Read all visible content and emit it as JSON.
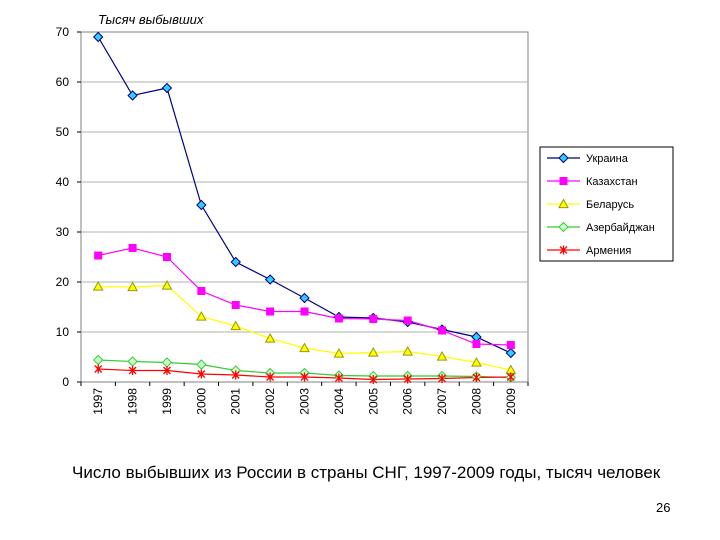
{
  "chart_data": {
    "type": "line",
    "ylabel": "Тысяч выбывших",
    "xlabel": "",
    "ylim": [
      0,
      70
    ],
    "yticks": [
      0,
      10,
      20,
      30,
      40,
      50,
      60,
      70
    ],
    "grid": true,
    "legend_position": "right",
    "x": [
      "1997",
      "1998",
      "1999",
      "2000",
      "2001",
      "2002",
      "2003",
      "2004",
      "2005",
      "2006",
      "2007",
      "2008",
      "2009"
    ],
    "series": [
      {
        "name": "Украина",
        "color": "#000080",
        "marker": "diamond",
        "marker_color": "#33CCFF",
        "values": [
          69,
          57.3,
          58.8,
          35.4,
          24.0,
          20.5,
          16.8,
          13.0,
          12.8,
          12.0,
          10.5,
          9.0,
          5.8
        ]
      },
      {
        "name": "Казахстан",
        "color": "#FF00FF",
        "marker": "square",
        "marker_color": "#FF00FF",
        "values": [
          25.3,
          26.8,
          25.0,
          18.2,
          15.4,
          14.1,
          14.1,
          12.7,
          12.6,
          12.3,
          10.3,
          7.6,
          7.4
        ]
      },
      {
        "name": "Беларусь",
        "color": "#FFFF00",
        "marker": "triangle",
        "marker_color": "#FFFF00",
        "values": [
          19.1,
          19.0,
          19.3,
          13.1,
          11.2,
          8.7,
          6.8,
          5.7,
          5.9,
          6.1,
          5.1,
          3.9,
          2.4
        ]
      },
      {
        "name": "Азербайджан",
        "color": "#33CC33",
        "marker": "diamond",
        "marker_color": "#CCFFCC",
        "values": [
          4.4,
          4.1,
          3.9,
          3.5,
          2.3,
          1.8,
          1.8,
          1.3,
          1.2,
          1.2,
          1.2,
          1.1,
          0.9
        ]
      },
      {
        "name": "Армения",
        "color": "#FF0000",
        "marker": "star",
        "marker_color": "#FF0000",
        "values": [
          2.6,
          2.3,
          2.3,
          1.6,
          1.4,
          1.0,
          1.0,
          0.8,
          0.5,
          0.6,
          0.7,
          0.9,
          1.0
        ]
      }
    ]
  },
  "caption": "Число выбывших из России в страны СНГ, 1997-2009 годы, тысяч человек",
  "page_number": "26"
}
